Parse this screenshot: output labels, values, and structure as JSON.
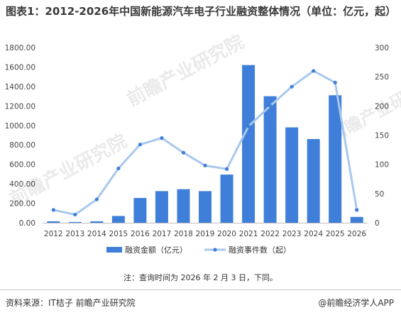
{
  "title": "图表1：2012-2026年中国新能源汽车电子行业融资整体情况（单位：亿元，起）",
  "note": "注：查询时间为 2026 年 2 月 3 日，下同。",
  "source": "资料来源：IT桔子  前瞻产业研究院",
  "credit": "@前瞻经济学人APP",
  "watermark": "前瞻产业研究院",
  "chart_data": {
    "type": "bar+line",
    "categories": [
      "2012",
      "2013",
      "2014",
      "2015",
      "2016",
      "2017",
      "2018",
      "2019",
      "2020",
      "2021",
      "2022",
      "2023",
      "2024",
      "2025",
      "2026"
    ],
    "series": [
      {
        "name": "融资金额（亿元）",
        "type": "bar",
        "axis": "left",
        "color": "#3f7fd9",
        "values": [
          15,
          8,
          15,
          70,
          255,
          325,
          345,
          325,
          495,
          1620,
          1300,
          980,
          860,
          1310,
          60
        ]
      },
      {
        "name": "融资事件数（起）",
        "type": "line",
        "axis": "right",
        "color": "#a8c8ec",
        "values": [
          22,
          14,
          40,
          93,
          134,
          145,
          120,
          98,
          92,
          165,
          200,
          233,
          260,
          240,
          22
        ]
      }
    ],
    "y_left": {
      "min": 0,
      "max": 1800,
      "ticks": [
        "0.00",
        "200.00",
        "400.00",
        "600.00",
        "800.00",
        "1000.00",
        "1200.00",
        "1400.00",
        "1600.00",
        "1800.00"
      ]
    },
    "y_right": {
      "min": 0,
      "max": 300,
      "ticks": [
        "0",
        "50",
        "100",
        "150",
        "200",
        "250",
        "300"
      ]
    },
    "legend_position": "bottom",
    "grid": false
  }
}
